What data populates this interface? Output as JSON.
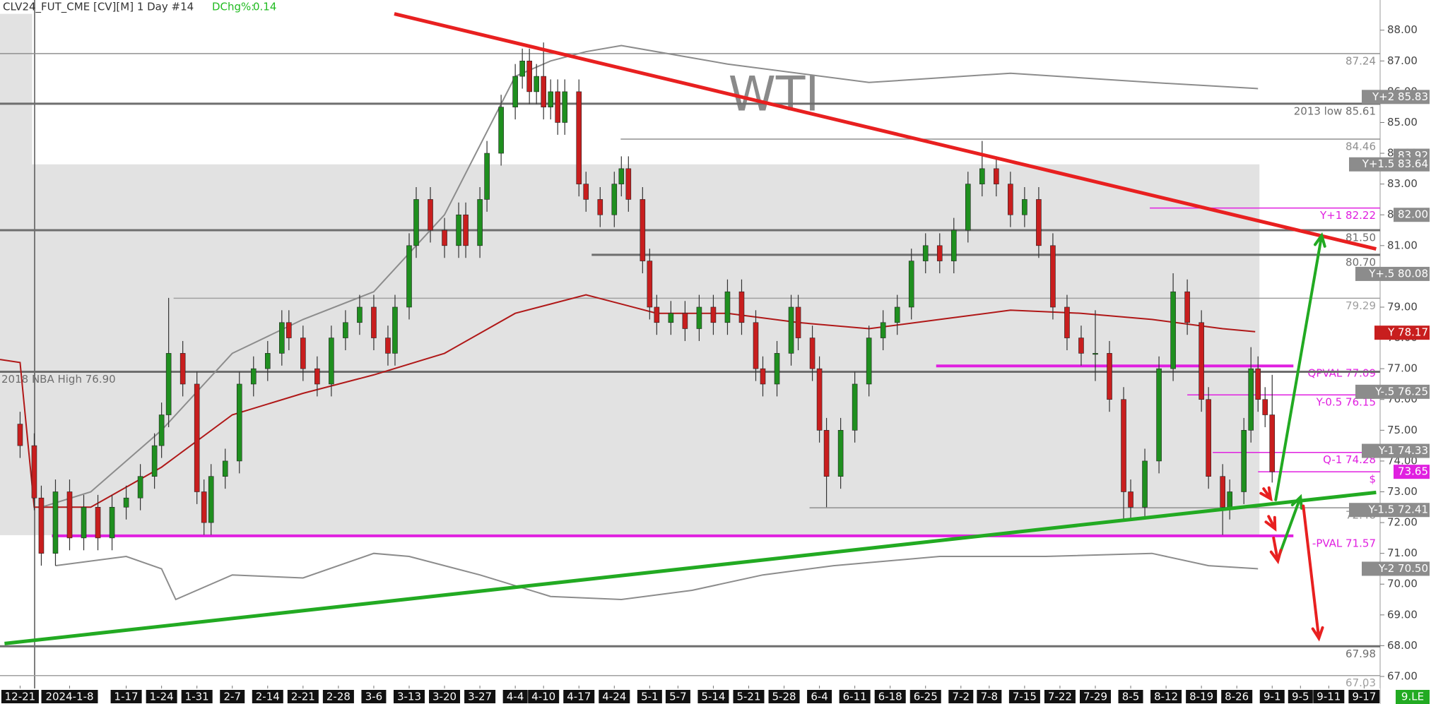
{
  "chart_data": {
    "type": "candlestick",
    "title": "CLV24_FUT_CME [CV][M] 1 Day #14",
    "dchg": {
      "label": "DChg%:",
      "value": 0.14,
      "color": "#22bb22"
    },
    "watermark": "WTI",
    "badge": {
      "label": "9.LE",
      "color": "#22aa22"
    },
    "xlim": [
      -2.84,
      192.26
    ],
    "ylim": [
      66.61,
      88.98
    ],
    "xticks": [
      {
        "value": 0,
        "label": "12-21"
      },
      {
        "value": 7,
        "label": "2024-1-8"
      },
      {
        "value": 15,
        "label": "1-17"
      },
      {
        "value": 20,
        "label": "1-24"
      },
      {
        "value": 25,
        "label": "1-31"
      },
      {
        "value": 30,
        "label": "2-7"
      },
      {
        "value": 35,
        "label": "2-14"
      },
      {
        "value": 40,
        "label": "2-21"
      },
      {
        "value": 45,
        "label": "2-28"
      },
      {
        "value": 50,
        "label": "3-6"
      },
      {
        "value": 55,
        "label": "3-13"
      },
      {
        "value": 60,
        "label": "3-20"
      },
      {
        "value": 65,
        "label": "3-27"
      },
      {
        "value": 70,
        "label": "4-4"
      },
      {
        "value": 74,
        "label": "4-10"
      },
      {
        "value": 79,
        "label": "4-17"
      },
      {
        "value": 84,
        "label": "4-24"
      },
      {
        "value": 89,
        "label": "5-1"
      },
      {
        "value": 93,
        "label": "5-7"
      },
      {
        "value": 98,
        "label": "5-14"
      },
      {
        "value": 103,
        "label": "5-21"
      },
      {
        "value": 108,
        "label": "5-28"
      },
      {
        "value": 113,
        "label": "6-4"
      },
      {
        "value": 118,
        "label": "6-11"
      },
      {
        "value": 123,
        "label": "6-18"
      },
      {
        "value": 128,
        "label": "6-25"
      },
      {
        "value": 133,
        "label": "7-2"
      },
      {
        "value": 137,
        "label": "7-8"
      },
      {
        "value": 142,
        "label": "7-15"
      },
      {
        "value": 147,
        "label": "7-22"
      },
      {
        "value": 152,
        "label": "7-29"
      },
      {
        "value": 157,
        "label": "8-5"
      },
      {
        "value": 162,
        "label": "8-12"
      },
      {
        "value": 167,
        "label": "8-19"
      },
      {
        "value": 172,
        "label": "8-26"
      },
      {
        "value": 177,
        "label": "9-1"
      },
      {
        "value": 181,
        "label": "9-5"
      },
      {
        "value": 185,
        "label": "9-11"
      },
      {
        "value": 190,
        "label": "9-17"
      }
    ],
    "yticks": [
      {
        "value": 67,
        "label": "67.00"
      },
      {
        "value": 68,
        "label": "68.00"
      },
      {
        "value": 69,
        "label": "69.00"
      },
      {
        "value": 70,
        "label": "70.00"
      },
      {
        "value": 71,
        "label": "71.00"
      },
      {
        "value": 72,
        "label": "72.00"
      },
      {
        "value": 73,
        "label": "73.00"
      },
      {
        "value": 74,
        "label": "74.00"
      },
      {
        "value": 75,
        "label": "75.00"
      },
      {
        "value": 76,
        "label": "76.00"
      },
      {
        "value": 77,
        "label": "77.00"
      },
      {
        "value": 78,
        "label": "78.00"
      },
      {
        "value": 79,
        "label": "79.00"
      },
      {
        "value": 80,
        "label": "80.00"
      },
      {
        "value": 81,
        "label": "81.00"
      },
      {
        "value": 82,
        "label": "82.00"
      },
      {
        "value": 83,
        "label": "83.00"
      },
      {
        "value": 84,
        "label": "84.00"
      },
      {
        "value": 85,
        "label": "85.00"
      },
      {
        "value": 86,
        "label": "86.00"
      },
      {
        "value": 87,
        "label": "87.00"
      },
      {
        "value": 88,
        "label": "88.00"
      }
    ],
    "up_color": "#1f8f1f",
    "down_color": "#c81e1e",
    "zone_color": "#e2e2e2",
    "zones": [
      {
        "x": [
          -2.84,
          175.2
        ],
        "y": [
          71.59,
          83.64
        ]
      },
      {
        "x": [
          -2.84,
          1.7
        ],
        "y": [
          82.6,
          88.53
        ]
      }
    ],
    "candles": {
      "x": [
        0,
        2,
        3,
        5,
        7,
        9,
        11,
        13,
        15,
        17,
        19,
        20,
        21,
        23,
        25,
        26,
        27,
        29,
        31,
        33,
        35,
        37,
        38,
        40,
        42,
        44,
        46,
        48,
        50,
        52,
        53,
        55,
        56,
        58,
        60,
        62,
        63,
        65,
        66,
        68,
        70,
        71,
        72,
        73,
        74,
        75,
        76,
        77,
        79,
        80,
        82,
        84,
        85,
        86,
        88,
        89,
        90,
        92,
        94,
        96,
        98,
        100,
        102,
        104,
        105,
        107,
        109,
        110,
        112,
        113,
        114,
        116,
        118,
        120,
        122,
        124,
        126,
        128,
        130,
        132,
        134,
        136,
        138,
        140,
        142,
        144,
        146,
        148,
        150,
        152,
        154,
        156,
        157,
        159,
        161,
        163,
        165,
        167,
        168,
        170,
        171,
        173,
        174,
        175,
        176,
        177
      ],
      "open": [
        75.2,
        74.5,
        72.8,
        71.0,
        73.0,
        71.5,
        72.5,
        71.5,
        72.5,
        72.8,
        73.5,
        74.5,
        75.5,
        77.5,
        76.5,
        73.0,
        72.0,
        73.5,
        74.0,
        76.5,
        77.0,
        77.5,
        78.5,
        78.0,
        77.0,
        76.5,
        78.0,
        78.5,
        79.0,
        78.0,
        77.5,
        79.0,
        81.0,
        82.5,
        81.5,
        81.0,
        82.0,
        81.0,
        82.5,
        84.0,
        85.5,
        86.5,
        87.0,
        86.0,
        86.5,
        85.5,
        86.0,
        85.0,
        86.0,
        83.0,
        82.5,
        82.0,
        83.0,
        83.5,
        82.5,
        80.5,
        79.0,
        78.5,
        78.8,
        78.3,
        79.0,
        78.5,
        79.5,
        78.5,
        77.0,
        76.5,
        77.5,
        79.0,
        78.0,
        77.0,
        75.0,
        73.5,
        75.0,
        76.5,
        78.0,
        78.5,
        79.0,
        80.5,
        81.0,
        80.5,
        81.5,
        83.0,
        83.5,
        83.0,
        82.0,
        82.5,
        81.0,
        79.0,
        78.0,
        77.5,
        77.5,
        76.0,
        73.0,
        72.5,
        74.0,
        77.0,
        79.5,
        78.5,
        76.0,
        73.5,
        72.5,
        73.0,
        75.0,
        77.0,
        76.0,
        75.5
      ],
      "high": [
        75.6,
        74.9,
        73.2,
        73.4,
        73.4,
        72.9,
        72.9,
        72.9,
        73.2,
        73.9,
        74.9,
        75.9,
        79.3,
        77.9,
        76.9,
        73.4,
        73.9,
        74.4,
        76.9,
        77.4,
        77.9,
        78.9,
        78.9,
        78.4,
        77.4,
        78.4,
        78.9,
        79.4,
        79.4,
        78.4,
        79.4,
        81.4,
        82.9,
        82.9,
        81.9,
        82.4,
        82.4,
        82.9,
        84.4,
        85.9,
        86.9,
        87.4,
        87.4,
        86.9,
        87.6,
        86.4,
        86.4,
        86.4,
        86.4,
        83.4,
        82.9,
        83.4,
        83.9,
        83.9,
        82.9,
        80.9,
        79.4,
        79.2,
        79.2,
        79.4,
        79.4,
        79.9,
        79.9,
        78.9,
        77.4,
        77.9,
        79.4,
        79.4,
        78.4,
        77.4,
        75.4,
        75.4,
        76.9,
        78.4,
        78.9,
        79.4,
        80.9,
        81.4,
        81.4,
        81.9,
        83.4,
        84.4,
        83.9,
        83.4,
        82.9,
        82.9,
        81.4,
        79.4,
        78.4,
        78.9,
        77.9,
        76.4,
        73.4,
        74.4,
        77.4,
        80.1,
        79.9,
        78.9,
        76.4,
        73.9,
        73.4,
        75.4,
        77.7,
        77.4,
        76.4,
        76.8
      ],
      "low": [
        74.1,
        72.4,
        70.6,
        70.6,
        71.1,
        71.1,
        71.1,
        71.1,
        72.1,
        72.4,
        73.1,
        74.1,
        75.1,
        76.1,
        72.6,
        71.6,
        71.6,
        73.1,
        73.6,
        76.1,
        76.6,
        77.1,
        77.6,
        76.6,
        76.1,
        76.1,
        77.6,
        78.1,
        77.6,
        77.1,
        77.1,
        78.6,
        80.6,
        81.1,
        80.6,
        80.6,
        80.6,
        80.6,
        82.1,
        83.6,
        85.1,
        86.1,
        85.6,
        85.6,
        85.1,
        85.1,
        84.6,
        84.6,
        82.6,
        82.1,
        81.6,
        81.6,
        82.6,
        82.1,
        80.1,
        78.6,
        78.1,
        78.1,
        77.9,
        77.9,
        78.1,
        78.1,
        78.1,
        76.6,
        76.1,
        76.1,
        77.1,
        77.6,
        76.6,
        74.6,
        72.5,
        73.1,
        74.6,
        76.1,
        77.6,
        78.1,
        78.6,
        80.1,
        80.1,
        80.1,
        81.1,
        82.6,
        82.6,
        81.6,
        81.6,
        80.6,
        78.6,
        77.6,
        77.1,
        76.6,
        75.6,
        72.1,
        72.1,
        72.1,
        73.6,
        76.6,
        78.1,
        75.6,
        73.1,
        71.6,
        72.1,
        72.6,
        74.6,
        75.6,
        75.1,
        73.3
      ],
      "close": [
        74.5,
        72.8,
        71.0,
        73.0,
        71.5,
        72.5,
        71.5,
        72.5,
        72.8,
        73.5,
        74.5,
        75.5,
        77.5,
        76.5,
        73.0,
        72.0,
        73.5,
        74.0,
        76.5,
        77.0,
        77.5,
        78.5,
        78.0,
        77.0,
        76.5,
        78.0,
        78.5,
        79.0,
        78.0,
        77.5,
        79.0,
        81.0,
        82.5,
        81.5,
        81.0,
        82.0,
        81.0,
        82.5,
        84.0,
        85.5,
        86.5,
        87.0,
        86.0,
        86.5,
        85.5,
        86.0,
        85.0,
        86.0,
        83.0,
        82.5,
        82.0,
        83.0,
        83.5,
        82.5,
        80.5,
        79.0,
        78.5,
        78.8,
        78.3,
        79.0,
        78.5,
        79.5,
        78.5,
        77.0,
        76.5,
        77.5,
        79.0,
        78.0,
        77.0,
        75.0,
        73.5,
        75.0,
        76.5,
        78.0,
        78.5,
        79.0,
        80.5,
        81.0,
        80.5,
        81.5,
        83.0,
        83.5,
        83.0,
        82.0,
        82.5,
        81.0,
        79.0,
        78.0,
        77.5,
        77.5,
        76.0,
        73.0,
        72.5,
        74.0,
        77.0,
        79.5,
        78.5,
        76.0,
        73.5,
        72.5,
        73.0,
        75.0,
        77.0,
        76.0,
        75.5,
        73.65
      ]
    },
    "series": [
      {
        "color": "#b01818",
        "x": [
          -2.84,
          0,
          2,
          10,
          20,
          30,
          40,
          50,
          60,
          70,
          80,
          90,
          100,
          110,
          120,
          130,
          140,
          150,
          160,
          170,
          174.6
        ],
        "values": [
          77.3,
          77.2,
          72.5,
          72.5,
          73.8,
          75.5,
          76.2,
          76.8,
          77.5,
          78.8,
          79.4,
          78.8,
          78.8,
          78.5,
          78.3,
          78.6,
          78.9,
          78.8,
          78.6,
          78.3,
          78.2
        ]
      },
      {
        "color": "#8c8c8c",
        "x": [
          3,
          10,
          20,
          30,
          40,
          50,
          60,
          70,
          75,
          80,
          85,
          100,
          120,
          140,
          160,
          175
        ],
        "values": [
          72.5,
          73.0,
          75.0,
          77.5,
          78.6,
          79.5,
          82.0,
          86.5,
          87.0,
          87.3,
          87.5,
          86.9,
          86.3,
          86.6,
          86.3,
          86.1
        ]
      },
      {
        "color": "#8c8c8c",
        "x": [
          5,
          15,
          20,
          22,
          30,
          40,
          50,
          55,
          65,
          75,
          85,
          95,
          105,
          115,
          130,
          145,
          160,
          168,
          175
        ],
        "values": [
          70.6,
          70.9,
          70.5,
          69.5,
          70.3,
          70.2,
          71.0,
          70.9,
          70.3,
          69.6,
          69.5,
          69.8,
          70.3,
          70.6,
          70.9,
          70.9,
          71.0,
          70.6,
          70.5
        ]
      }
    ],
    "levels": [
      {
        "value": 87.24,
        "label": "87.24",
        "color": "#909090",
        "x": [
          -2.84,
          192.26
        ]
      },
      {
        "value": 85.61,
        "label": "2013 low  85.61",
        "color": "#6e6e6e",
        "x": [
          -2.84,
          192.26
        ]
      },
      {
        "value": 84.46,
        "label": "84.46",
        "color": "#909090",
        "x": [
          84.9,
          192.26
        ]
      },
      {
        "value": 82.22,
        "label": "Y+1  82.22",
        "color": "#e020e0",
        "x": [
          159.7,
          192.26
        ]
      },
      {
        "value": 81.5,
        "label": "81.50",
        "color": "#6e6e6e",
        "x": [
          -2.84,
          192.26
        ]
      },
      {
        "value": 80.7,
        "label": "80.70",
        "color": "#6e6e6e",
        "x": [
          80.8,
          192.26
        ]
      },
      {
        "value": 79.29,
        "label": "79.29",
        "color": "#a0a0a0",
        "x": [
          21.7,
          192.26
        ]
      },
      {
        "value": 77.09,
        "label": "QPVAL  77.09",
        "color": "#e020e0",
        "x": [
          129.5,
          180
        ]
      },
      {
        "value": 76.9,
        "label": "2018 NBA High  76.90",
        "color": "#6e6e6e",
        "x": [
          -2.84,
          192.26
        ],
        "label_side": "left"
      },
      {
        "value": 76.15,
        "label": "Y-0.5  76.15",
        "color": "#e020e0",
        "x": [
          165,
          192.26
        ]
      },
      {
        "value": 74.28,
        "label": "Q-1  74.28",
        "color": "#e020e0",
        "x": [
          168.6,
          192.26
        ]
      },
      {
        "value": 73.65,
        "label": "$",
        "color": "#e020e0",
        "x": [
          175,
          192.26
        ]
      },
      {
        "value": 72.48,
        "label": "72.48",
        "color": "#909090",
        "x": [
          111.6,
          192.26
        ]
      },
      {
        "value": 71.57,
        "label": "-PVAL  71.57",
        "color": "#e020e0",
        "x": [
          4.5,
          180
        ]
      },
      {
        "value": 67.98,
        "label": "67.98",
        "color": "#6e6e6e",
        "x": [
          -2.84,
          192.26
        ]
      },
      {
        "value": 67.03,
        "label": "67.03",
        "color": "#a0a0a0",
        "x": [
          -2.84,
          192.26
        ]
      }
    ],
    "price_marks": [
      {
        "value": 85.83,
        "label": "Y+2  85.83",
        "color": "#8c8c8c"
      },
      {
        "value": 83.92,
        "label": "83.92",
        "color": "#8c8c8c"
      },
      {
        "value": 83.64,
        "label": "Y+1.5  83.64",
        "color": "#8c8c8c"
      },
      {
        "value": 82.0,
        "label": "82.00",
        "color": "#8c8c8c"
      },
      {
        "value": 80.08,
        "label": "Y+.5  80.08",
        "color": "#8c8c8c"
      },
      {
        "value": 78.17,
        "label": "Y  78.17",
        "color": "#c81e1e"
      },
      {
        "value": 76.25,
        "label": "Y-.5  76.25",
        "color": "#8c8c8c"
      },
      {
        "value": 74.33,
        "label": "Y-1  74.33",
        "color": "#8c8c8c"
      },
      {
        "value": 73.65,
        "label": "73.65",
        "color": "#e020e0"
      },
      {
        "value": 72.41,
        "label": "Y-1.5  72.41",
        "color": "#8c8c8c"
      },
      {
        "value": 70.5,
        "label": "Y-2  70.50",
        "color": "#8c8c8c"
      }
    ],
    "trendlines": [
      {
        "color": "#e82020",
        "x": [
          52.9,
          191.7
        ],
        "y": [
          88.53,
          80.89
        ]
      },
      {
        "color": "#22aa22",
        "x": [
          -2.2,
          191.7
        ],
        "y": [
          68.07,
          72.98
        ]
      }
    ],
    "arrows": [
      {
        "color": "#22aa22",
        "x": [
          177.5,
          184
        ],
        "y": [
          72.74,
          81.33
        ]
      },
      {
        "color": "#22aa22",
        "x": [
          178.1,
          181
        ],
        "y": [
          71.0,
          72.83
        ]
      },
      {
        "color": "#e82020",
        "x": [
          181.4,
          183.6
        ],
        "y": [
          72.54,
          68.24
        ]
      },
      {
        "color": "#e82020",
        "x": [
          175.8,
          176.8
        ],
        "y": [
          73.1,
          72.77
        ]
      },
      {
        "color": "#e82020",
        "x": [
          176.5,
          177.4
        ],
        "y": [
          72.2,
          71.8
        ]
      },
      {
        "color": "#e82020",
        "x": [
          177.2,
          177.8
        ],
        "y": [
          71.5,
          70.75
        ]
      }
    ]
  }
}
